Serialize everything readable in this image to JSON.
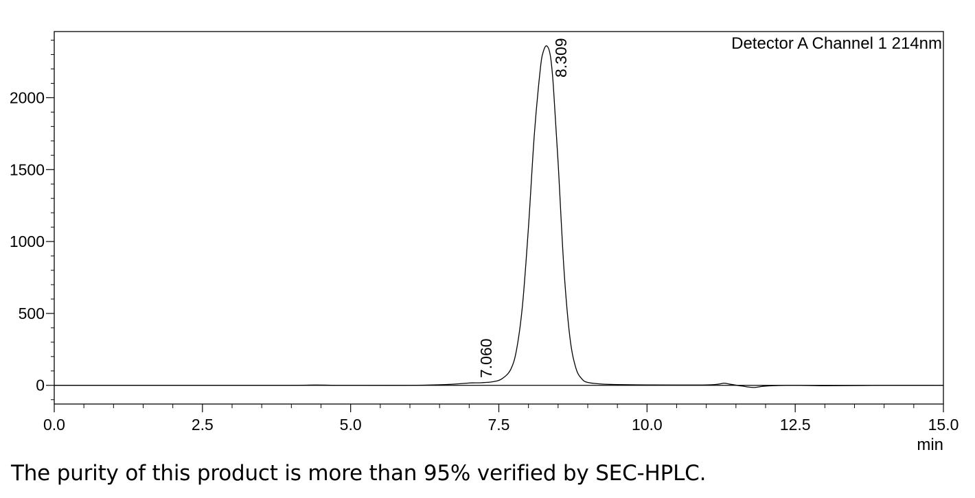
{
  "chart_data": {
    "type": "line",
    "series": [
      {
        "x": [
          0,
          1.0,
          2.0,
          3.0,
          4.0,
          4.4,
          4.8,
          5.2,
          6.0,
          6.5,
          6.8,
          7.0,
          7.06,
          7.2,
          7.4,
          7.55,
          7.7,
          7.8,
          7.9,
          8.0,
          8.1,
          8.2,
          8.25,
          8.309,
          8.37,
          8.42,
          8.5,
          8.6,
          8.7,
          8.8,
          8.9,
          9.0,
          9.2,
          9.5,
          10.0,
          10.5,
          11.0,
          11.2,
          11.3,
          11.4,
          11.6,
          11.8,
          12.0,
          12.5,
          13.0,
          14.0,
          15.0
        ],
        "y": [
          0,
          0,
          0,
          0,
          0,
          2,
          0,
          0,
          0,
          4,
          10,
          16,
          17,
          18,
          25,
          45,
          110,
          250,
          560,
          1100,
          1750,
          2200,
          2320,
          2360,
          2290,
          2080,
          1550,
          800,
          330,
          120,
          45,
          20,
          10,
          5,
          3,
          2,
          3,
          8,
          15,
          8,
          -5,
          -15,
          -5,
          0,
          -3,
          0,
          0
        ]
      }
    ],
    "peaks": [
      {
        "rt": 7.06,
        "label": "7.060"
      },
      {
        "rt": 8.309,
        "label": "8.309"
      }
    ],
    "xlim": [
      0,
      15
    ],
    "ylim": [
      -130,
      2460
    ],
    "xticks": [
      0,
      2.5,
      5.0,
      7.5,
      10.0,
      12.5,
      15.0
    ],
    "xtick_labels": [
      "0.0",
      "2.5",
      "5.0",
      "7.5",
      "10.0",
      "12.5",
      "15.0"
    ],
    "yticks": [
      0,
      500,
      1000,
      1500,
      2000
    ],
    "ytick_labels": [
      "0",
      "500",
      "1000",
      "1500",
      "2000"
    ],
    "xlabel": "min",
    "ylabel": "",
    "title": "",
    "annotation": "Detector A Channel 1 214nm",
    "grid": false,
    "line_color": "#000000"
  },
  "caption": "The purity of this product is more than 95% verified by SEC-HPLC."
}
